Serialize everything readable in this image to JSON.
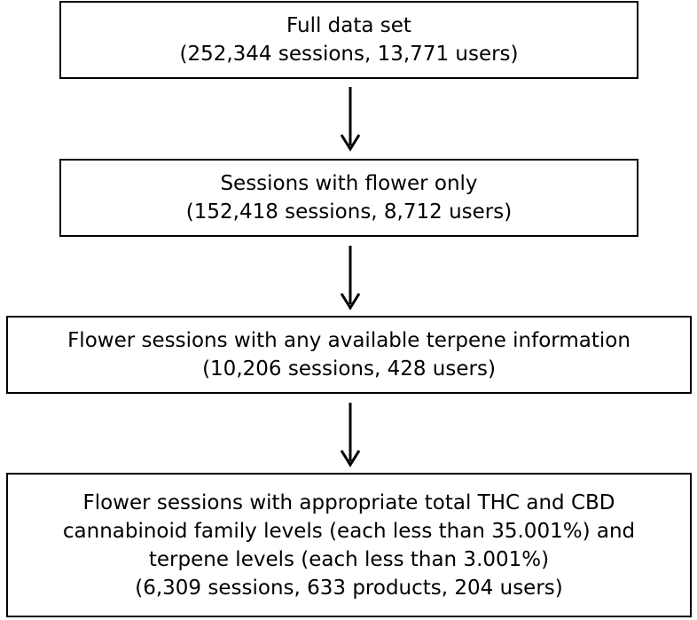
{
  "steps": [
    {
      "lines": [
        "Full data set",
        "(252,344 sessions, 13,771 users)"
      ]
    },
    {
      "lines": [
        "Sessions with flower only",
        "(152,418 sessions, 8,712 users)"
      ]
    },
    {
      "lines": [
        "Flower sessions with any available terpene information",
        "(10,206 sessions, 428 users)"
      ]
    },
    {
      "lines": [
        "Flower sessions with appropriate total THC and CBD",
        "cannabinoid family levels (each less than 35.001%) and",
        "terpene levels (each less than 3.001%)",
        "(6,309 sessions, 633 products, 204 users)"
      ]
    }
  ],
  "colors": {
    "border": "#000000",
    "arrow": "#000000",
    "background": "#ffffff"
  }
}
